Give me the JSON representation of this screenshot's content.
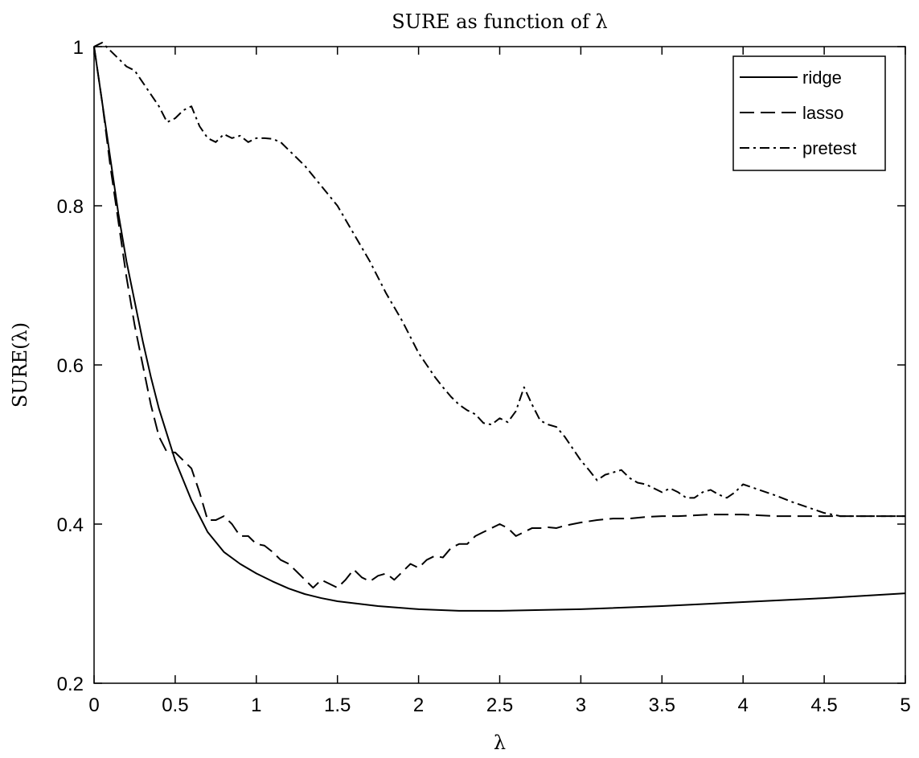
{
  "chart_data": {
    "type": "line",
    "title": "SURE as function of λ",
    "xlabel": "λ",
    "ylabel": "SURE(λ)",
    "xlim": [
      0,
      5
    ],
    "ylim": [
      0.2,
      1.0
    ],
    "x_ticks": [
      0,
      0.5,
      1,
      1.5,
      2,
      2.5,
      3,
      3.5,
      4,
      4.5,
      5
    ],
    "x_tick_labels": [
      "0",
      "0.5",
      "1",
      "1.5",
      "2",
      "2.5",
      "3",
      "3.5",
      "4",
      "4.5",
      "5"
    ],
    "y_ticks": [
      0.2,
      0.4,
      0.6,
      0.8,
      1.0
    ],
    "y_tick_labels": [
      "0.2",
      "0.4",
      "0.6",
      "0.8",
      "1"
    ],
    "grid": false,
    "legend_position": "top-right",
    "series": [
      {
        "name": "ridge",
        "line_style": "solid",
        "color": "#000000",
        "x": [
          0,
          0.05,
          0.1,
          0.15,
          0.2,
          0.25,
          0.3,
          0.35,
          0.4,
          0.5,
          0.6,
          0.7,
          0.8,
          0.9,
          1.0,
          1.1,
          1.2,
          1.3,
          1.4,
          1.5,
          1.75,
          2.0,
          2.25,
          2.5,
          2.75,
          3.0,
          3.5,
          4.0,
          4.5,
          5.0
        ],
        "y": [
          1.0,
          0.93,
          0.86,
          0.79,
          0.73,
          0.68,
          0.63,
          0.585,
          0.545,
          0.48,
          0.43,
          0.39,
          0.365,
          0.35,
          0.338,
          0.328,
          0.319,
          0.312,
          0.307,
          0.303,
          0.297,
          0.293,
          0.291,
          0.291,
          0.292,
          0.293,
          0.297,
          0.302,
          0.307,
          0.313
        ]
      },
      {
        "name": "lasso",
        "line_style": "dashed",
        "color": "#000000",
        "x": [
          0,
          0.05,
          0.1,
          0.15,
          0.2,
          0.25,
          0.3,
          0.35,
          0.4,
          0.45,
          0.5,
          0.55,
          0.6,
          0.65,
          0.7,
          0.75,
          0.8,
          0.85,
          0.9,
          0.95,
          1.0,
          1.05,
          1.1,
          1.15,
          1.2,
          1.25,
          1.3,
          1.35,
          1.4,
          1.45,
          1.5,
          1.55,
          1.6,
          1.65,
          1.7,
          1.75,
          1.8,
          1.85,
          1.9,
          1.95,
          2.0,
          2.05,
          2.1,
          2.15,
          2.2,
          2.25,
          2.3,
          2.35,
          2.4,
          2.45,
          2.5,
          2.55,
          2.6,
          2.65,
          2.7,
          2.75,
          2.8,
          2.85,
          2.9,
          2.95,
          3.0,
          3.1,
          3.2,
          3.3,
          3.4,
          3.5,
          3.6,
          3.7,
          3.8,
          3.9,
          4.0,
          4.2,
          4.5,
          5.0
        ],
        "y": [
          1.0,
          0.93,
          0.85,
          0.78,
          0.71,
          0.65,
          0.6,
          0.55,
          0.51,
          0.49,
          0.49,
          0.48,
          0.47,
          0.44,
          0.405,
          0.405,
          0.41,
          0.4,
          0.385,
          0.385,
          0.375,
          0.373,
          0.365,
          0.355,
          0.35,
          0.34,
          0.33,
          0.32,
          0.33,
          0.325,
          0.32,
          0.33,
          0.343,
          0.333,
          0.328,
          0.335,
          0.338,
          0.33,
          0.34,
          0.35,
          0.345,
          0.355,
          0.36,
          0.358,
          0.37,
          0.375,
          0.375,
          0.385,
          0.39,
          0.395,
          0.4,
          0.395,
          0.385,
          0.39,
          0.395,
          0.395,
          0.396,
          0.395,
          0.398,
          0.4,
          0.402,
          0.405,
          0.407,
          0.407,
          0.409,
          0.41,
          0.41,
          0.411,
          0.412,
          0.412,
          0.412,
          0.41,
          0.41,
          0.41
        ]
      },
      {
        "name": "pretest",
        "line_style": "dashdot",
        "color": "#000000",
        "x": [
          0,
          0.05,
          0.1,
          0.15,
          0.2,
          0.25,
          0.3,
          0.35,
          0.4,
          0.45,
          0.5,
          0.55,
          0.6,
          0.65,
          0.7,
          0.75,
          0.8,
          0.85,
          0.9,
          0.95,
          1.0,
          1.05,
          1.1,
          1.15,
          1.2,
          1.3,
          1.4,
          1.5,
          1.6,
          1.7,
          1.8,
          1.9,
          2.0,
          2.05,
          2.1,
          2.15,
          2.2,
          2.25,
          2.3,
          2.35,
          2.4,
          2.45,
          2.5,
          2.55,
          2.6,
          2.65,
          2.7,
          2.75,
          2.8,
          2.85,
          2.9,
          2.95,
          3.0,
          3.05,
          3.1,
          3.15,
          3.2,
          3.25,
          3.3,
          3.35,
          3.4,
          3.45,
          3.5,
          3.55,
          3.6,
          3.65,
          3.7,
          3.75,
          3.8,
          3.85,
          3.9,
          3.95,
          4.0,
          4.1,
          4.2,
          4.3,
          4.4,
          4.5,
          4.6,
          5.0
        ],
        "y": [
          1.0,
          1.005,
          0.995,
          0.985,
          0.975,
          0.97,
          0.955,
          0.94,
          0.925,
          0.905,
          0.91,
          0.92,
          0.925,
          0.9,
          0.885,
          0.88,
          0.89,
          0.885,
          0.888,
          0.88,
          0.885,
          0.885,
          0.884,
          0.88,
          0.87,
          0.85,
          0.825,
          0.8,
          0.765,
          0.73,
          0.69,
          0.655,
          0.615,
          0.6,
          0.585,
          0.572,
          0.56,
          0.55,
          0.543,
          0.538,
          0.527,
          0.525,
          0.533,
          0.528,
          0.542,
          0.572,
          0.55,
          0.53,
          0.525,
          0.522,
          0.51,
          0.495,
          0.48,
          0.468,
          0.455,
          0.462,
          0.465,
          0.468,
          0.458,
          0.452,
          0.45,
          0.445,
          0.44,
          0.445,
          0.44,
          0.433,
          0.433,
          0.44,
          0.443,
          0.437,
          0.433,
          0.44,
          0.45,
          0.443,
          0.436,
          0.428,
          0.421,
          0.414,
          0.41,
          0.41
        ]
      }
    ]
  }
}
